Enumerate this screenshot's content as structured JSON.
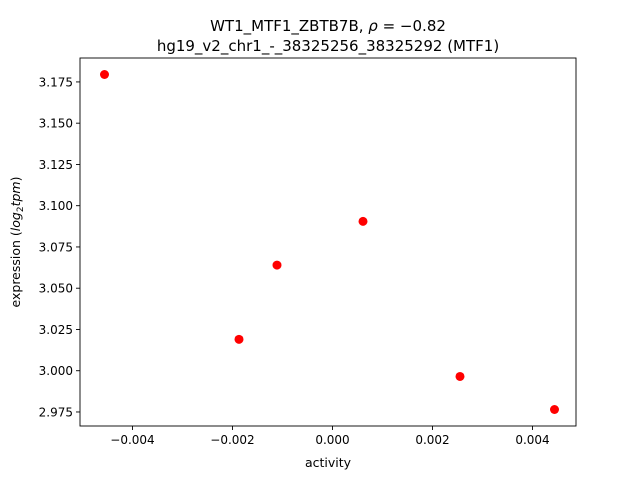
{
  "chart_data": {
    "type": "scatter",
    "title_line1_prefix": "WT1_MTF1_ZBTB7B, ",
    "title_line1_rho": "ρ",
    "title_line1_suffix": " = −0.82",
    "title_line2": "hg19_v2_chr1_-_38325256_38325292 (MTF1)",
    "xlabel": "activity",
    "ylabel_prefix": "expression (",
    "ylabel_log": "log",
    "ylabel_sub": "2",
    "ylabel_tpm": "tpm",
    "ylabel_suffix": ")",
    "xlim": [
      -0.00505,
      0.00487
    ],
    "ylim": [
      2.9665,
      3.1895
    ],
    "x_ticks": [
      {
        "value": -0.004,
        "label": "−0.004"
      },
      {
        "value": -0.002,
        "label": "−0.002"
      },
      {
        "value": 0.0,
        "label": "0.000"
      },
      {
        "value": 0.002,
        "label": "0.002"
      },
      {
        "value": 0.004,
        "label": "0.004"
      }
    ],
    "y_ticks": [
      {
        "value": 2.975,
        "label": "2.975"
      },
      {
        "value": 3.0,
        "label": "3.000"
      },
      {
        "value": 3.025,
        "label": "3.025"
      },
      {
        "value": 3.05,
        "label": "3.050"
      },
      {
        "value": 3.075,
        "label": "3.075"
      },
      {
        "value": 3.1,
        "label": "3.100"
      },
      {
        "value": 3.125,
        "label": "3.125"
      },
      {
        "value": 3.15,
        "label": "3.150"
      },
      {
        "value": 3.175,
        "label": "3.175"
      }
    ],
    "points": [
      {
        "x": -0.00456,
        "y": 3.1795
      },
      {
        "x": -0.00187,
        "y": 3.019
      },
      {
        "x": -0.00111,
        "y": 3.064
      },
      {
        "x": 0.00061,
        "y": 3.0905
      },
      {
        "x": 0.00255,
        "y": 2.9965
      },
      {
        "x": 0.00444,
        "y": 2.9765
      }
    ],
    "point_color": "#ff0000",
    "grid": false
  }
}
